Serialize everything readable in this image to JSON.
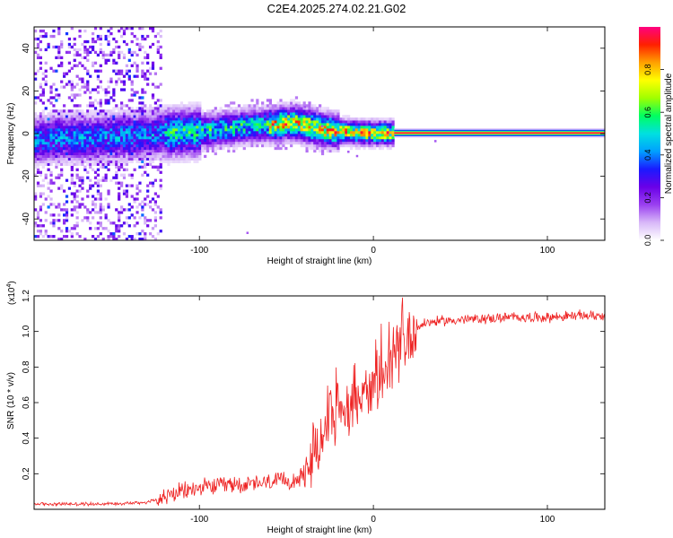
{
  "figure_title": "C2E4.2025.274.02.21.G02",
  "chart_data": [
    {
      "type": "heatmap",
      "title": "C2E4.2025.274.02.21.G02",
      "xlabel": "Height of straight line (km)",
      "ylabel": "Frequency (Hz)",
      "xlim": [
        -195,
        133
      ],
      "ylim": [
        -50,
        50
      ],
      "x_ticks": [
        -100,
        0,
        100
      ],
      "x_tick_labels": [
        "-100",
        "0",
        "100"
      ],
      "y_ticks": [
        -40,
        -20,
        0,
        20,
        40
      ],
      "y_tick_labels": [
        "-40",
        "-20",
        "0",
        "20",
        "40"
      ],
      "colorbar": {
        "label": "Normalized spectral amplitude",
        "range": [
          0,
          1
        ],
        "ticks": [
          0,
          0.2,
          0.4,
          0.6,
          0.8
        ],
        "tick_labels": [
          "0.0",
          "0.2",
          "0.4",
          "0.6",
          "0.8"
        ],
        "colors": [
          "#ffffff",
          "#d8b8f8",
          "#9a40f0",
          "#6a00e8",
          "#1a1aff",
          "#00a0ff",
          "#00e0e0",
          "#00ff60",
          "#a0ff00",
          "#ffff00",
          "#ffa000",
          "#ff2000",
          "#ff0080"
        ]
      },
      "ridge": {
        "x": [
          -195,
          -180,
          -160,
          -140,
          -120,
          -100,
          -90,
          -80,
          -70,
          -60,
          -50,
          -45,
          -40,
          -35,
          -30,
          -20,
          -10,
          0,
          10,
          133
        ],
        "frequency_hz": [
          -3,
          -2,
          -2,
          -1,
          0,
          1,
          2,
          3,
          4,
          4,
          5,
          5,
          4,
          3,
          2,
          1,
          0.5,
          0.3,
          0.3,
          0.3
        ],
        "steady_band_start_x": 12
      }
    },
    {
      "type": "line",
      "xlabel": "Height of straight line (km)",
      "ylabel": "SNR (10 * v/v)",
      "y_multiplier_label": "(x10",
      "y_multiplier_exponent": "4",
      "y_multiplier_close": ")",
      "xlim": [
        -195,
        133
      ],
      "ylim": [
        0,
        1.2
      ],
      "x_ticks": [
        -100,
        0,
        100
      ],
      "x_tick_labels": [
        "-100",
        "0",
        "100"
      ],
      "y_ticks": [
        0.2,
        0.4,
        0.6,
        0.8,
        1.0,
        1.2
      ],
      "y_tick_labels": [
        "0.2",
        "0.4",
        "0.6",
        "0.8",
        "1.0",
        "1.2"
      ],
      "series": [
        {
          "name": "SNR",
          "color": "#ee2222",
          "x": [
            -195,
            -180,
            -160,
            -140,
            -130,
            -120,
            -110,
            -100,
            -90,
            -80,
            -70,
            -60,
            -50,
            -40,
            -35,
            -30,
            -25,
            -20,
            -15,
            -10,
            -5,
            0,
            5,
            10,
            15,
            20,
            25,
            30,
            40,
            60,
            80,
            100,
            120,
            133
          ],
          "values": [
            0.03,
            0.03,
            0.03,
            0.035,
            0.04,
            0.07,
            0.1,
            0.12,
            0.13,
            0.14,
            0.14,
            0.15,
            0.16,
            0.18,
            0.3,
            0.45,
            0.5,
            0.55,
            0.6,
            0.62,
            0.65,
            0.68,
            0.72,
            0.8,
            0.9,
            0.98,
            1.02,
            1.05,
            1.06,
            1.07,
            1.08,
            1.08,
            1.09,
            1.09
          ]
        }
      ]
    }
  ]
}
